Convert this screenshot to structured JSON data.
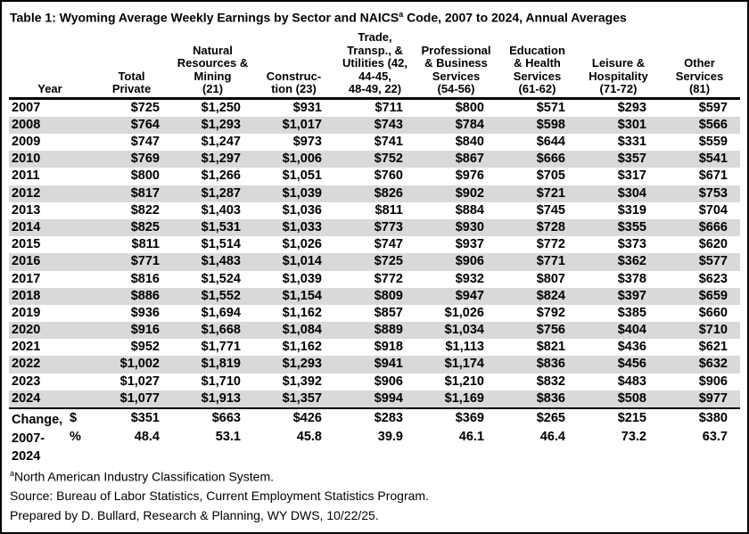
{
  "title": {
    "part1": "Table 1: Wyoming Average Weekly Earnings by Sector and NAICS",
    "sup": "a",
    "part2": " Code, 2007 to 2024, Annual Averages"
  },
  "colors": {
    "row_shade": "#d9d9d9",
    "border": "#000000",
    "background": "#ffffff",
    "text": "#000000"
  },
  "table": {
    "columns": [
      {
        "id": "year",
        "label": "Year"
      },
      {
        "id": "total-private",
        "label": "Total\nPrivate"
      },
      {
        "id": "natural-resources-mining",
        "label": "Natural\nResources &\nMining\n(21)"
      },
      {
        "id": "construction",
        "label": "Construc-\ntion (23)"
      },
      {
        "id": "trade-transportation-utilities",
        "label": "Trade,\nTransp., &\nUtilities (42,\n44-45,\n48-49, 22)"
      },
      {
        "id": "professional-business-services",
        "label": "Professional\n& Business\nServices\n(54-56)"
      },
      {
        "id": "education-health-services",
        "label": "Education\n& Health\nServices\n(61-62)"
      },
      {
        "id": "leisure-hospitality",
        "label": "Leisure &\nHospitality\n(71-72)"
      },
      {
        "id": "other-services",
        "label": "Other\nServices\n(81)"
      }
    ],
    "rows": [
      {
        "year": "2007",
        "values": [
          "$725",
          "$1,250",
          "$931",
          "$711",
          "$800",
          "$571",
          "$293",
          "$597"
        ]
      },
      {
        "year": "2008",
        "values": [
          "$764",
          "$1,293",
          "$1,017",
          "$743",
          "$784",
          "$598",
          "$301",
          "$566"
        ]
      },
      {
        "year": "2009",
        "values": [
          "$747",
          "$1,247",
          "$973",
          "$741",
          "$840",
          "$644",
          "$331",
          "$559"
        ]
      },
      {
        "year": "2010",
        "values": [
          "$769",
          "$1,297",
          "$1,006",
          "$752",
          "$867",
          "$666",
          "$357",
          "$541"
        ]
      },
      {
        "year": "2011",
        "values": [
          "$800",
          "$1,266",
          "$1,051",
          "$760",
          "$976",
          "$705",
          "$317",
          "$671"
        ]
      },
      {
        "year": "2012",
        "values": [
          "$817",
          "$1,287",
          "$1,039",
          "$826",
          "$902",
          "$721",
          "$304",
          "$753"
        ]
      },
      {
        "year": "2013",
        "values": [
          "$822",
          "$1,403",
          "$1,036",
          "$811",
          "$884",
          "$745",
          "$319",
          "$704"
        ]
      },
      {
        "year": "2014",
        "values": [
          "$825",
          "$1,531",
          "$1,033",
          "$773",
          "$930",
          "$728",
          "$355",
          "$666"
        ]
      },
      {
        "year": "2015",
        "values": [
          "$811",
          "$1,514",
          "$1,026",
          "$747",
          "$937",
          "$772",
          "$373",
          "$620"
        ]
      },
      {
        "year": "2016",
        "values": [
          "$771",
          "$1,483",
          "$1,014",
          "$725",
          "$906",
          "$771",
          "$362",
          "$577"
        ]
      },
      {
        "year": "2017",
        "values": [
          "$816",
          "$1,524",
          "$1,039",
          "$772",
          "$932",
          "$807",
          "$378",
          "$623"
        ]
      },
      {
        "year": "2018",
        "values": [
          "$886",
          "$1,552",
          "$1,154",
          "$809",
          "$947",
          "$824",
          "$397",
          "$659"
        ]
      },
      {
        "year": "2019",
        "values": [
          "$936",
          "$1,694",
          "$1,162",
          "$857",
          "$1,026",
          "$792",
          "$385",
          "$660"
        ]
      },
      {
        "year": "2020",
        "values": [
          "$916",
          "$1,668",
          "$1,084",
          "$889",
          "$1,034",
          "$756",
          "$404",
          "$710"
        ]
      },
      {
        "year": "2021",
        "values": [
          "$952",
          "$1,771",
          "$1,162",
          "$918",
          "$1,113",
          "$821",
          "$436",
          "$621"
        ]
      },
      {
        "year": "2022",
        "values": [
          "$1,002",
          "$1,819",
          "$1,293",
          "$941",
          "$1,174",
          "$836",
          "$456",
          "$632"
        ]
      },
      {
        "year": "2023",
        "values": [
          "$1,027",
          "$1,710",
          "$1,392",
          "$906",
          "$1,210",
          "$832",
          "$483",
          "$906"
        ]
      },
      {
        "year": "2024",
        "values": [
          "$1,077",
          "$1,913",
          "$1,357",
          "$994",
          "$1,169",
          "$836",
          "$508",
          "$977"
        ]
      }
    ],
    "change": {
      "label": "Change,\n2007-\n2024",
      "rows": [
        {
          "unit": "$",
          "values": [
            "$351",
            "$663",
            "$426",
            "$283",
            "$369",
            "$265",
            "$215",
            "$380"
          ]
        },
        {
          "unit": "%",
          "values": [
            "48.4",
            "53.1",
            "45.8",
            "39.9",
            "46.1",
            "46.4",
            "73.2",
            "63.7"
          ]
        }
      ]
    }
  },
  "footnotes": {
    "note1_sup": "a",
    "note1": "North American Industry Classification System.",
    "note2": "Source: Bureau of Labor Statistics, Current Employment Statistics Program.",
    "note3": "Prepared by D. Bullard, Research & Planning, WY DWS, 10/22/25."
  }
}
